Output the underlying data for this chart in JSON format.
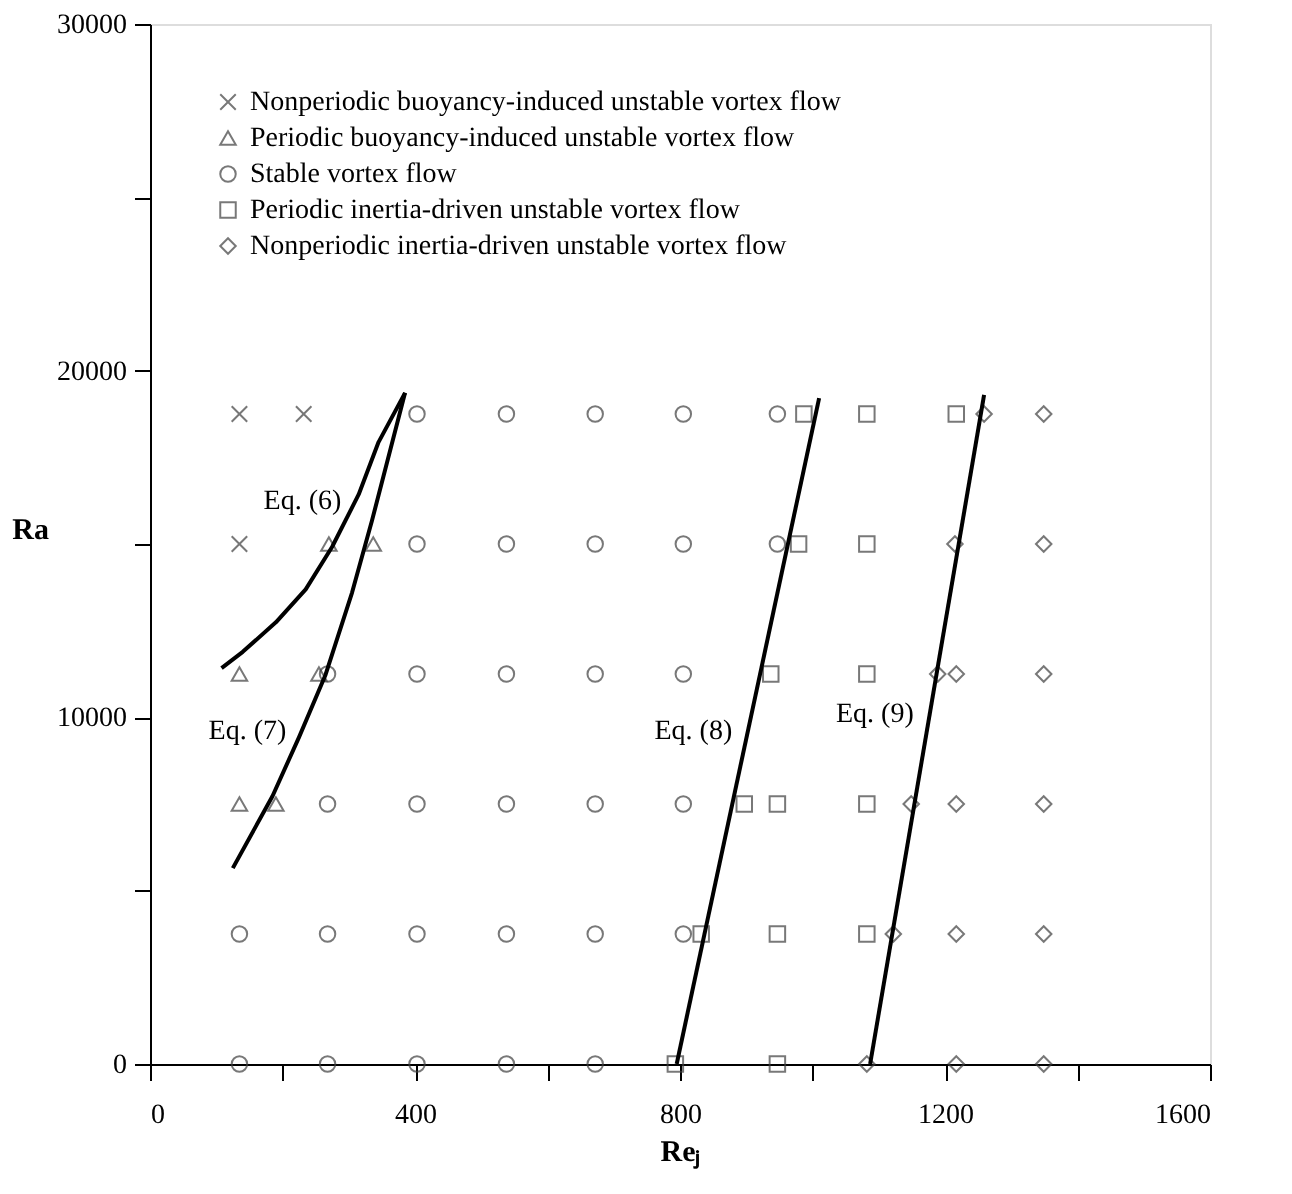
{
  "chart_data": {
    "type": "scatter",
    "xlabel": "Reⱼ",
    "ylabel": "Ra",
    "xlim": [
      0,
      1600
    ],
    "ylim": [
      0,
      30000
    ],
    "xticks": [
      0,
      {
        "value": 200,
        "label": null
      },
      400,
      {
        "value": 600,
        "label": null
      },
      800,
      {
        "value": 1000,
        "label": null
      },
      1200,
      {
        "value": 1400,
        "label": null
      },
      1600
    ],
    "yticks": [
      0,
      {
        "value": 5000,
        "label": null
      },
      10000,
      {
        "value": 15000,
        "label": null
      },
      20000,
      {
        "value": 25000,
        "label": null
      },
      30000
    ],
    "grid": false,
    "legend": "top left",
    "series": [
      {
        "name": "Nonperiodic buoyancy-induced unstable vortex flow",
        "type": "scatter",
        "marker": "cross",
        "color": "#404040",
        "x": [
          135,
          232,
          135
        ],
        "values": [
          18750,
          18750,
          15000
        ]
      },
      {
        "name": "Periodic buoyancy-induced unstable vortex flow",
        "type": "scatter",
        "marker": "triangle",
        "color": "#404040",
        "x": [
          270,
          337,
          135,
          255,
          135,
          190
        ],
        "values": [
          15000,
          15000,
          11250,
          11250,
          7500,
          7500
        ]
      },
      {
        "name": "Stable vortex flow",
        "type": "scatter",
        "marker": "circle",
        "color": "#404040",
        "x": [
          403,
          538,
          672,
          805,
          947,
          403,
          538,
          672,
          805,
          947,
          268,
          403,
          538,
          672,
          805,
          268,
          403,
          538,
          672,
          805,
          135,
          268,
          403,
          538,
          672,
          805,
          135,
          268,
          403,
          538,
          672
        ],
        "values": [
          18750,
          18750,
          18750,
          18750,
          18750,
          15000,
          15000,
          15000,
          15000,
          15000,
          11250,
          11250,
          11250,
          11250,
          11250,
          7500,
          7500,
          7500,
          7500,
          7500,
          3750,
          3750,
          3750,
          3750,
          3750,
          3750,
          0,
          0,
          0,
          0,
          0
        ]
      },
      {
        "name": "Periodic inertia-driven unstable vortex flow",
        "type": "scatter",
        "marker": "square",
        "color": "#404040",
        "x": [
          987,
          1082,
          1217,
          979,
          1082,
          937,
          1082,
          897,
          947,
          1082,
          832,
          947,
          1082,
          793,
          947
        ],
        "values": [
          18750,
          18750,
          18750,
          15000,
          15000,
          11250,
          11250,
          7500,
          7500,
          7500,
          3750,
          3750,
          3750,
          0,
          0
        ]
      },
      {
        "name": "Nonperiodic inertia-driven unstable vortex flow",
        "type": "scatter",
        "marker": "diamond",
        "color": "#404040",
        "x": [
          1259,
          1349,
          1215,
          1349,
          1189,
          1217,
          1349,
          1149,
          1217,
          1349,
          1122,
          1217,
          1349,
          1082,
          1217,
          1349
        ],
        "values": [
          18750,
          18750,
          15000,
          15000,
          11250,
          11250,
          11250,
          7500,
          7500,
          7500,
          3750,
          3750,
          3750,
          0,
          0,
          0
        ]
      },
      {
        "type": "line",
        "marker": "none",
        "line_style": "solid",
        "color": "#000000",
        "x": [
          108,
          140,
          190,
          235,
          275,
          315,
          345,
          385
        ],
        "values": [
          11420,
          11890,
          12740,
          13690,
          14920,
          16430,
          17940,
          19360
        ]
      },
      {
        "type": "line",
        "marker": "none",
        "line_style": "solid",
        "color": "#000000",
        "x": [
          125,
          185,
          225,
          265,
          305,
          335,
          385
        ],
        "values": [
          5650,
          7730,
          9430,
          11230,
          13600,
          15670,
          19360
        ]
      },
      {
        "type": "line",
        "marker": "none",
        "line_style": "solid",
        "color": "#000000",
        "x": [
          795,
          1010
        ],
        "values": [
          0,
          19210
        ]
      },
      {
        "type": "line",
        "marker": "none",
        "line_style": "solid",
        "color": "#000000",
        "x": [
          1087,
          1259
        ],
        "values": [
          0,
          19300
        ]
      }
    ],
    "annotations": [
      {
        "text": "Eq. (6)",
        "x": 313,
        "y": 16240
      },
      {
        "text": "Eq. (7)",
        "x": 230,
        "y": 9620
      },
      {
        "text": "Eq. (8)",
        "x": 903,
        "y": 9620
      },
      {
        "text": "Eq. (9)",
        "x": 1177,
        "y": 10100
      }
    ]
  }
}
